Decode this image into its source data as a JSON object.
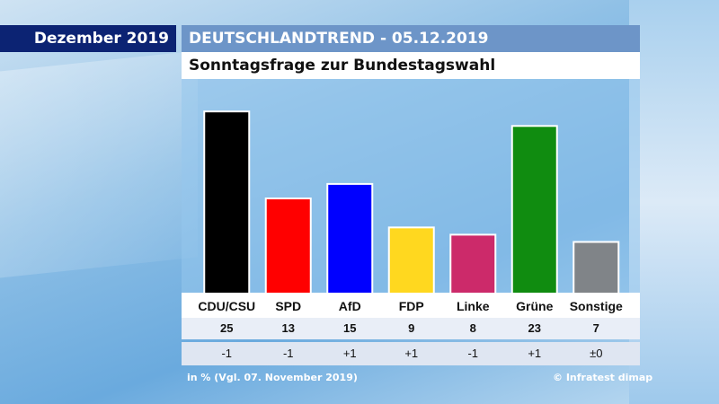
{
  "header": {
    "date_label": "Dezember 2019",
    "title": "DEUTSCHLANDTREND - 05.12.2019",
    "subtitle": "Sonntagsfrage zur Bundestagswahl"
  },
  "chart_data": {
    "type": "bar",
    "title": "Sonntagsfrage zur Bundestagswahl",
    "categories": [
      "CDU/CSU",
      "SPD",
      "AfD",
      "FDP",
      "Linke",
      "Grüne",
      "Sonstige"
    ],
    "values": [
      25,
      13,
      15,
      9,
      8,
      23,
      7
    ],
    "colors": [
      "#000000",
      "#ff0000",
      "#0000ff",
      "#ffd81f",
      "#cc2a6a",
      "#108c10",
      "#808488"
    ],
    "change_labels": [
      "-1",
      "-1",
      "+1",
      "+1",
      "-1",
      "+1",
      "±0"
    ],
    "unit": "%",
    "ylim": [
      0,
      27
    ],
    "grid": false,
    "legend": "none"
  },
  "footer": {
    "note": "in % (Vgl. 07. November 2019)",
    "source": "© Infratest dimap"
  }
}
